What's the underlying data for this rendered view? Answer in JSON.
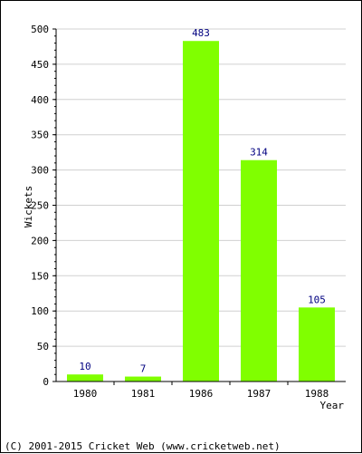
{
  "chart_data": {
    "type": "bar",
    "categories": [
      "1980",
      "1981",
      "1986",
      "1987",
      "1988"
    ],
    "values": [
      10,
      7,
      483,
      314,
      105
    ],
    "xlabel": "Year",
    "ylabel": "Wickets",
    "ylim": [
      0,
      500
    ],
    "yticks": [
      0,
      50,
      100,
      150,
      200,
      250,
      300,
      350,
      400,
      450,
      500
    ],
    "bar_color": "#80ff00",
    "value_label_color": "#000080",
    "grid": true
  },
  "footer": "(C) 2001-2015 Cricket Web (www.cricketweb.net)"
}
